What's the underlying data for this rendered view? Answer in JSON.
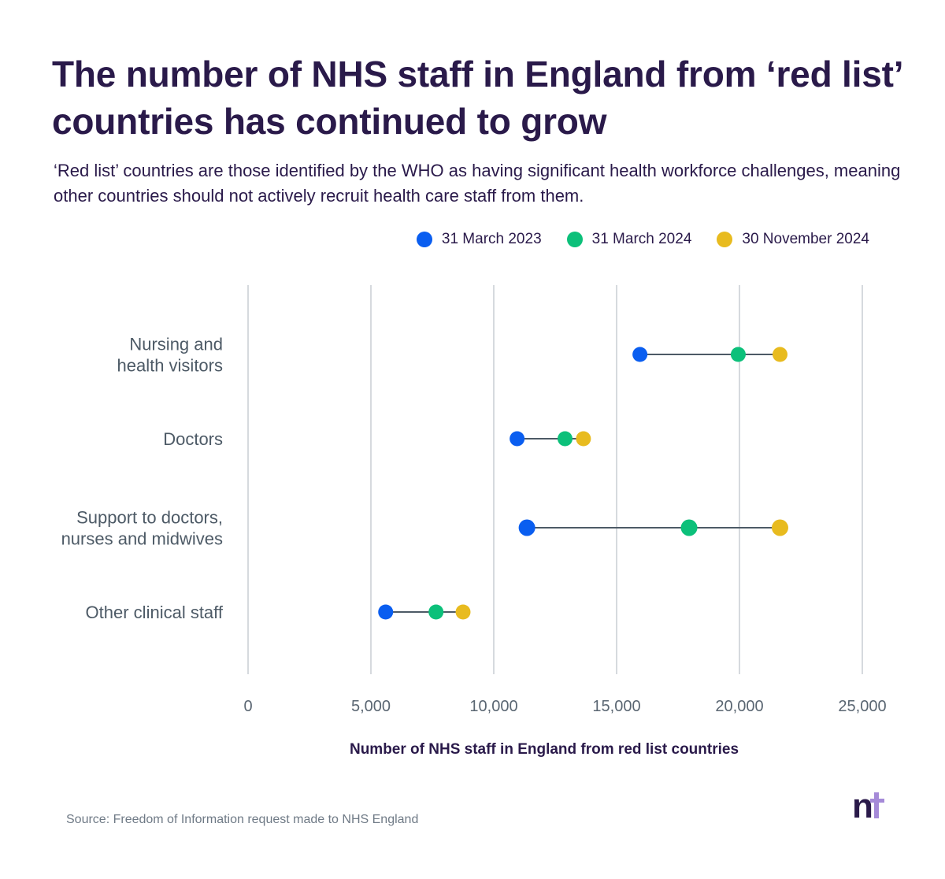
{
  "header": {
    "title": "The number of NHS staff in England from ‘red list’ countries has continued to grow",
    "subtitle": "‘Red list’ countries are those identified by the WHO as having significant health workforce challenges, meaning other countries should not actively recruit health care staff from them."
  },
  "legend": [
    {
      "label": "31 March 2023",
      "color": "#0a5ef0"
    },
    {
      "label": "31 March 2024",
      "color": "#0cc07a"
    },
    {
      "label": "30 November 2024",
      "color": "#e8bb1f"
    }
  ],
  "chart_data": {
    "type": "dumbbell",
    "xlabel": "Number of NHS staff in England from red list countries",
    "xlim": [
      0,
      25000
    ],
    "xticks": [
      {
        "value": 0,
        "label": "0"
      },
      {
        "value": 5000,
        "label": "5,000"
      },
      {
        "value": 10000,
        "label": "10,000"
      },
      {
        "value": 15000,
        "label": "15,000"
      },
      {
        "value": 20000,
        "label": "20,000"
      },
      {
        "value": 25000,
        "label": "25,000"
      }
    ],
    "grid": true,
    "categories": [
      {
        "name": "Nursing and\nhealth visitors",
        "values": [
          15950,
          19950,
          21650
        ]
      },
      {
        "name": "Doctors",
        "values": [
          10950,
          12900,
          13650
        ]
      },
      {
        "name": "Support to doctors,\nnurses and midwives",
        "values": [
          11350,
          17950,
          21650
        ]
      },
      {
        "name": "Other clinical staff",
        "values": [
          5600,
          7650,
          8750
        ]
      }
    ],
    "series": [
      {
        "name": "31 March 2023",
        "color": "#0a5ef0"
      },
      {
        "name": "31 March 2024",
        "color": "#0cc07a"
      },
      {
        "name": "30 November 2024",
        "color": "#e8bb1f"
      }
    ]
  },
  "footer": {
    "source": "Source: Freedom of Information request made to NHS England",
    "logo_text": "nt"
  }
}
